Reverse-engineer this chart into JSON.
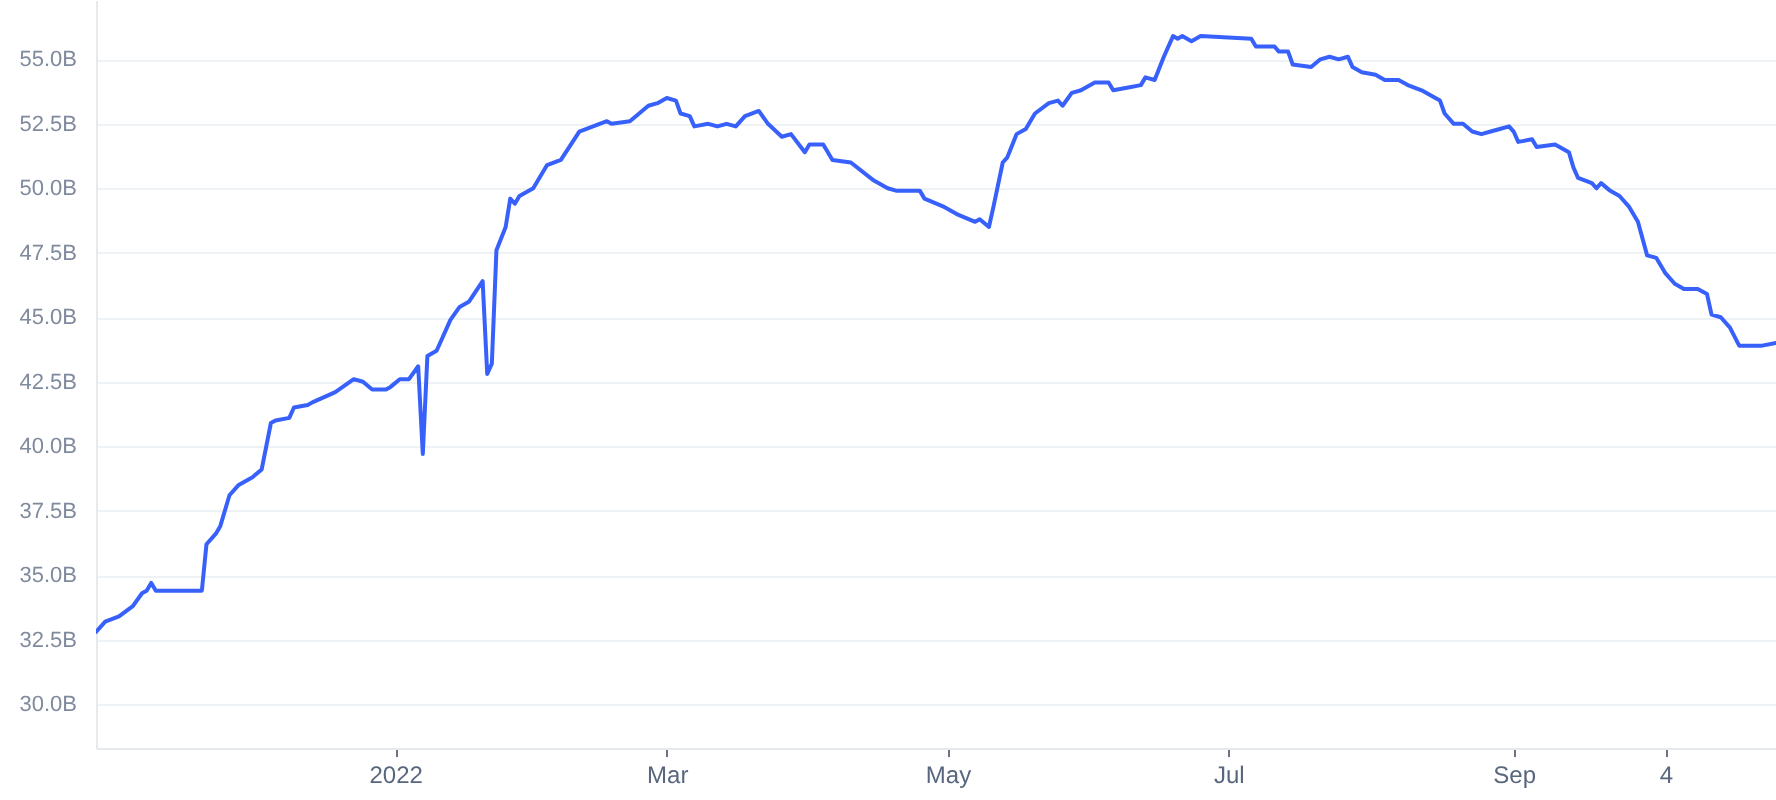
{
  "chart_data": {
    "type": "line",
    "color": "#3861fb",
    "line_style": "solid",
    "grid": "y",
    "xlim": [
      "2021-10-28",
      "2022-10-28"
    ],
    "xticks": [
      {
        "value": "2022-01-01",
        "label": "2022"
      },
      {
        "value": "2022-03-01",
        "label": "Mar"
      },
      {
        "value": "2022-05-01",
        "label": "May"
      },
      {
        "value": "2022-07-01",
        "label": "Jul"
      },
      {
        "value": "2022-09-01",
        "label": "Sep"
      },
      {
        "value": "2022-10-04",
        "label": "4"
      }
    ],
    "ylim": [
      28.3,
      57.3
    ],
    "yticks": [
      {
        "value": 30,
        "label": "30.0B"
      },
      {
        "value": 32.5,
        "label": "32.5B"
      },
      {
        "value": 35,
        "label": "35.0B"
      },
      {
        "value": 37.5,
        "label": "37.5B"
      },
      {
        "value": 40,
        "label": "40.0B"
      },
      {
        "value": 42.5,
        "label": "42.5B"
      },
      {
        "value": 45,
        "label": "45.0B"
      },
      {
        "value": 47.5,
        "label": "47.5B"
      },
      {
        "value": 50,
        "label": "50.0B"
      },
      {
        "value": 52.5,
        "label": "52.5B"
      },
      {
        "value": 55,
        "label": "55.0B"
      }
    ],
    "x": [
      "2021-10-28",
      "2021-10-30",
      "2021-11-02",
      "2021-11-05",
      "2021-11-07",
      "2021-11-08",
      "2021-11-09",
      "2021-11-10",
      "2021-11-20",
      "2021-11-21",
      "2021-11-23",
      "2021-11-24",
      "2021-11-26",
      "2021-11-28",
      "2021-12-01",
      "2021-12-03",
      "2021-12-05",
      "2021-12-06",
      "2021-12-09",
      "2021-12-10",
      "2021-12-13",
      "2021-12-14",
      "2021-12-19",
      "2021-12-23",
      "2021-12-25",
      "2021-12-27",
      "2021-12-30",
      "2021-12-31",
      "2022-01-02",
      "2022-01-04",
      "2022-01-06",
      "2022-01-07",
      "2022-01-08",
      "2022-01-10",
      "2022-01-11",
      "2022-01-13",
      "2022-01-15",
      "2022-01-17",
      "2022-01-20",
      "2022-01-21",
      "2022-01-22",
      "2022-01-23",
      "2022-01-25",
      "2022-01-26",
      "2022-01-27",
      "2022-01-28",
      "2022-01-31",
      "2022-02-03",
      "2022-02-06",
      "2022-02-10",
      "2022-02-13",
      "2022-02-16",
      "2022-02-17",
      "2022-02-21",
      "2022-02-23",
      "2022-02-25",
      "2022-02-27",
      "2022-03-01",
      "2022-03-03",
      "2022-03-04",
      "2022-03-06",
      "2022-03-07",
      "2022-03-10",
      "2022-03-12",
      "2022-03-14",
      "2022-03-16",
      "2022-03-18",
      "2022-03-21",
      "2022-03-23",
      "2022-03-26",
      "2022-03-28",
      "2022-03-31",
      "2022-04-01",
      "2022-04-04",
      "2022-04-06",
      "2022-04-10",
      "2022-04-15",
      "2022-04-18",
      "2022-04-20",
      "2022-04-25",
      "2022-04-26",
      "2022-04-30",
      "2022-05-03",
      "2022-05-07",
      "2022-05-08",
      "2022-05-10",
      "2022-05-11",
      "2022-05-13",
      "2022-05-14",
      "2022-05-16",
      "2022-05-18",
      "2022-05-20",
      "2022-05-23",
      "2022-05-25",
      "2022-05-26",
      "2022-05-28",
      "2022-05-30",
      "2022-06-02",
      "2022-06-05",
      "2022-06-06",
      "2022-06-09",
      "2022-06-12",
      "2022-06-13",
      "2022-06-15",
      "2022-06-17",
      "2022-06-19",
      "2022-06-20",
      "2022-06-21",
      "2022-06-23",
      "2022-06-25",
      "2022-07-06",
      "2022-07-07",
      "2022-07-11",
      "2022-07-12",
      "2022-07-14",
      "2022-07-15",
      "2022-07-19",
      "2022-07-21",
      "2022-07-23",
      "2022-07-25",
      "2022-07-27",
      "2022-07-28",
      "2022-07-30",
      "2022-08-02",
      "2022-08-04",
      "2022-08-07",
      "2022-08-09",
      "2022-08-12",
      "2022-08-15",
      "2022-08-16",
      "2022-08-17",
      "2022-08-19",
      "2022-08-21",
      "2022-08-23",
      "2022-08-25",
      "2022-08-27",
      "2022-08-29",
      "2022-08-31",
      "2022-09-01",
      "2022-09-02",
      "2022-09-05",
      "2022-09-06",
      "2022-09-10",
      "2022-09-13",
      "2022-09-14",
      "2022-09-15",
      "2022-09-18",
      "2022-09-19",
      "2022-09-20",
      "2022-09-22",
      "2022-09-24",
      "2022-09-26",
      "2022-09-28",
      "2022-09-30",
      "2022-10-02",
      "2022-10-04",
      "2022-10-06",
      "2022-10-08",
      "2022-10-11",
      "2022-10-13",
      "2022-10-14",
      "2022-10-16",
      "2022-10-18",
      "2022-10-20",
      "2022-10-23",
      "2022-10-24",
      "2022-10-25",
      "2022-10-28"
    ],
    "values": [
      32.8,
      33.2,
      33.4,
      33.8,
      34.3,
      34.4,
      34.7,
      34.4,
      34.4,
      36.2,
      36.6,
      36.9,
      38.1,
      38.5,
      38.8,
      39.1,
      40.9,
      41.0,
      41.1,
      41.5,
      41.6,
      41.7,
      42.1,
      42.6,
      42.5,
      42.2,
      42.2,
      42.3,
      42.6,
      42.6,
      43.1,
      39.7,
      43.5,
      43.7,
      44.1,
      44.9,
      45.4,
      45.6,
      46.4,
      42.8,
      43.2,
      47.6,
      48.5,
      49.6,
      49.4,
      49.7,
      50.0,
      50.9,
      51.1,
      52.2,
      52.4,
      52.6,
      52.5,
      52.6,
      52.9,
      53.2,
      53.3,
      53.5,
      53.4,
      52.9,
      52.8,
      52.4,
      52.5,
      52.4,
      52.5,
      52.4,
      52.8,
      53.0,
      52.5,
      52.0,
      52.1,
      51.4,
      51.7,
      51.7,
      51.1,
      51.0,
      50.3,
      50.0,
      49.9,
      49.9,
      49.6,
      49.3,
      49.0,
      48.7,
      48.8,
      48.5,
      49.3,
      51.0,
      51.2,
      52.1,
      52.3,
      52.9,
      53.3,
      53.4,
      53.2,
      53.7,
      53.8,
      54.1,
      54.1,
      53.8,
      53.9,
      54.0,
      54.3,
      54.2,
      55.1,
      55.9,
      55.8,
      55.9,
      55.7,
      55.9,
      55.8,
      55.5,
      55.5,
      55.3,
      55.3,
      54.8,
      54.7,
      55.0,
      55.1,
      55.0,
      55.1,
      54.7,
      54.5,
      54.4,
      54.2,
      54.2,
      54.0,
      53.8,
      53.5,
      53.4,
      52.9,
      52.5,
      52.5,
      52.2,
      52.1,
      52.2,
      52.3,
      52.4,
      52.2,
      51.8,
      51.9,
      51.6,
      51.7,
      51.4,
      50.8,
      50.4,
      50.2,
      50.0,
      50.2,
      49.9,
      49.7,
      49.3,
      48.7,
      47.4,
      47.3,
      46.7,
      46.3,
      46.1,
      46.1,
      45.9,
      45.1,
      45.0,
      44.6,
      43.9,
      43.9,
      43.9,
      43.9,
      44.0
    ]
  }
}
